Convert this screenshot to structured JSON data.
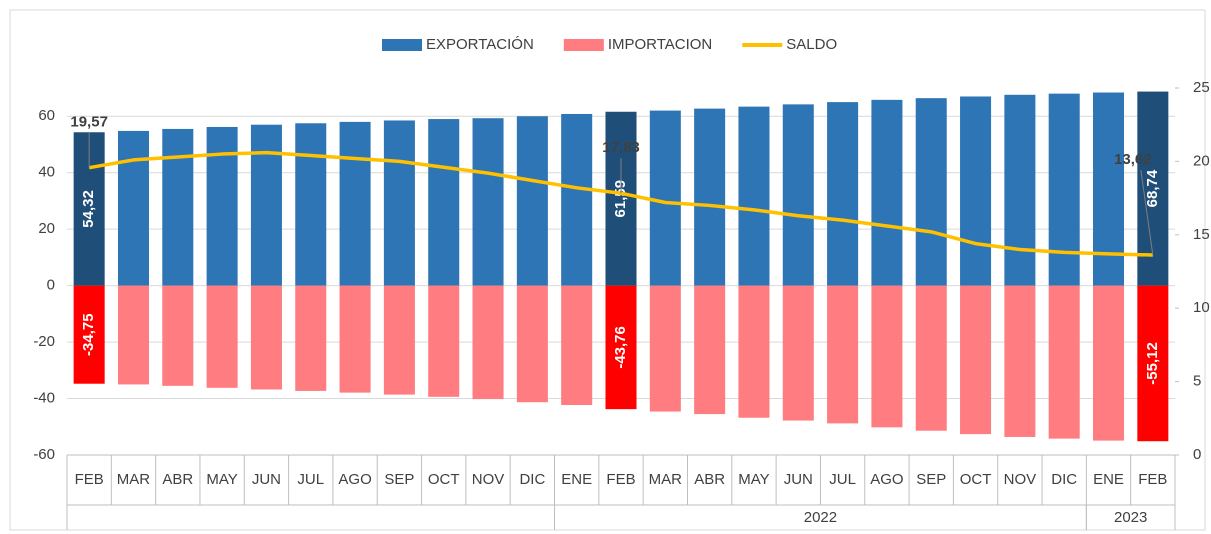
{
  "chart_data": {
    "type": "bar",
    "categories": [
      "FEB",
      "MAR",
      "ABR",
      "MAY",
      "JUN",
      "JUL",
      "AGO",
      "SEP",
      "OCT",
      "NOV",
      "DIC",
      "ENE",
      "FEB",
      "MAR",
      "ABR",
      "MAY",
      "JUN",
      "JUL",
      "AGO",
      "SEP",
      "OCT",
      "NOV",
      "DIC",
      "ENE",
      "FEB"
    ],
    "years": [
      null,
      null,
      null,
      null,
      null,
      null,
      null,
      null,
      null,
      null,
      null,
      "2022",
      "2022",
      "2022",
      "2022",
      "2022",
      "2022",
      "2022",
      "2022",
      "2022",
      "2022",
      "2022",
      "2022",
      "2023",
      "2023"
    ],
    "series": [
      {
        "name": "EXPORTACIÓN",
        "type": "bar",
        "color": "#2e75b6",
        "colors": [
          "#1f4e79",
          "#2e75b6",
          "#2e75b6",
          "#2e75b6",
          "#2e75b6",
          "#2e75b6",
          "#2e75b6",
          "#2e75b6",
          "#2e75b6",
          "#2e75b6",
          "#2e75b6",
          "#2e75b6",
          "#1f4e79",
          "#2e75b6",
          "#2e75b6",
          "#2e75b6",
          "#2e75b6",
          "#2e75b6",
          "#2e75b6",
          "#2e75b6",
          "#2e75b6",
          "#2e75b6",
          "#2e75b6",
          "#2e75b6",
          "#1f4e79"
        ],
        "values": [
          54.32,
          54.8,
          55.5,
          56.2,
          57,
          57.5,
          58,
          58.5,
          59,
          59.3,
          60,
          60.8,
          61.59,
          62,
          62.7,
          63.4,
          64.2,
          65,
          65.8,
          66.4,
          67,
          67.6,
          68,
          68.4,
          68.74
        ],
        "value_labels": [
          "54,32",
          null,
          null,
          null,
          null,
          null,
          null,
          null,
          null,
          null,
          null,
          null,
          "61,59",
          null,
          null,
          null,
          null,
          null,
          null,
          null,
          null,
          null,
          null,
          null,
          "68,74"
        ]
      },
      {
        "name": "IMPORTACION",
        "type": "bar",
        "color": "#ff7c80",
        "colors": [
          "#ff0000",
          "#ff7c80",
          "#ff7c80",
          "#ff7c80",
          "#ff7c80",
          "#ff7c80",
          "#ff7c80",
          "#ff7c80",
          "#ff7c80",
          "#ff7c80",
          "#ff7c80",
          "#ff7c80",
          "#ff0000",
          "#ff7c80",
          "#ff7c80",
          "#ff7c80",
          "#ff7c80",
          "#ff7c80",
          "#ff7c80",
          "#ff7c80",
          "#ff7c80",
          "#ff7c80",
          "#ff7c80",
          "#ff7c80",
          "#ff0000"
        ],
        "values": [
          -34.75,
          -35,
          -35.5,
          -36.2,
          -36.8,
          -37.3,
          -37.9,
          -38.6,
          -39.4,
          -40.2,
          -41.3,
          -42.3,
          -43.76,
          -44.6,
          -45.5,
          -46.8,
          -47.8,
          -48.8,
          -50.2,
          -51.4,
          -52.6,
          -53.6,
          -54.2,
          -54.9,
          -55.12
        ],
        "value_labels": [
          "-34,75",
          null,
          null,
          null,
          null,
          null,
          null,
          null,
          null,
          null,
          null,
          null,
          "-43,76",
          null,
          null,
          null,
          null,
          null,
          null,
          null,
          null,
          null,
          null,
          null,
          "-55,12"
        ]
      },
      {
        "name": "SALDO",
        "type": "line",
        "axis": "y2",
        "color": "#ffc000",
        "values": [
          19.57,
          20.1,
          20.3,
          20.5,
          20.6,
          20.4,
          20.2,
          20.0,
          19.6,
          19.2,
          18.7,
          18.2,
          17.83,
          17.2,
          17.0,
          16.7,
          16.3,
          16.0,
          15.6,
          15.2,
          14.4,
          14.0,
          13.8,
          13.7,
          13.62
        ],
        "value_labels": [
          "19,57",
          null,
          null,
          null,
          null,
          null,
          null,
          null,
          null,
          null,
          null,
          null,
          "17,83",
          null,
          null,
          null,
          null,
          null,
          null,
          null,
          null,
          null,
          null,
          null,
          "13,62"
        ]
      }
    ],
    "ylim": [
      -60,
      70
    ],
    "yticks": [
      -60,
      -40,
      -20,
      0,
      20,
      40,
      60
    ],
    "y2lim": [
      0,
      25
    ],
    "y2ticks": [
      0,
      5,
      10,
      15,
      20,
      25
    ],
    "grid": true,
    "legend": "top"
  }
}
